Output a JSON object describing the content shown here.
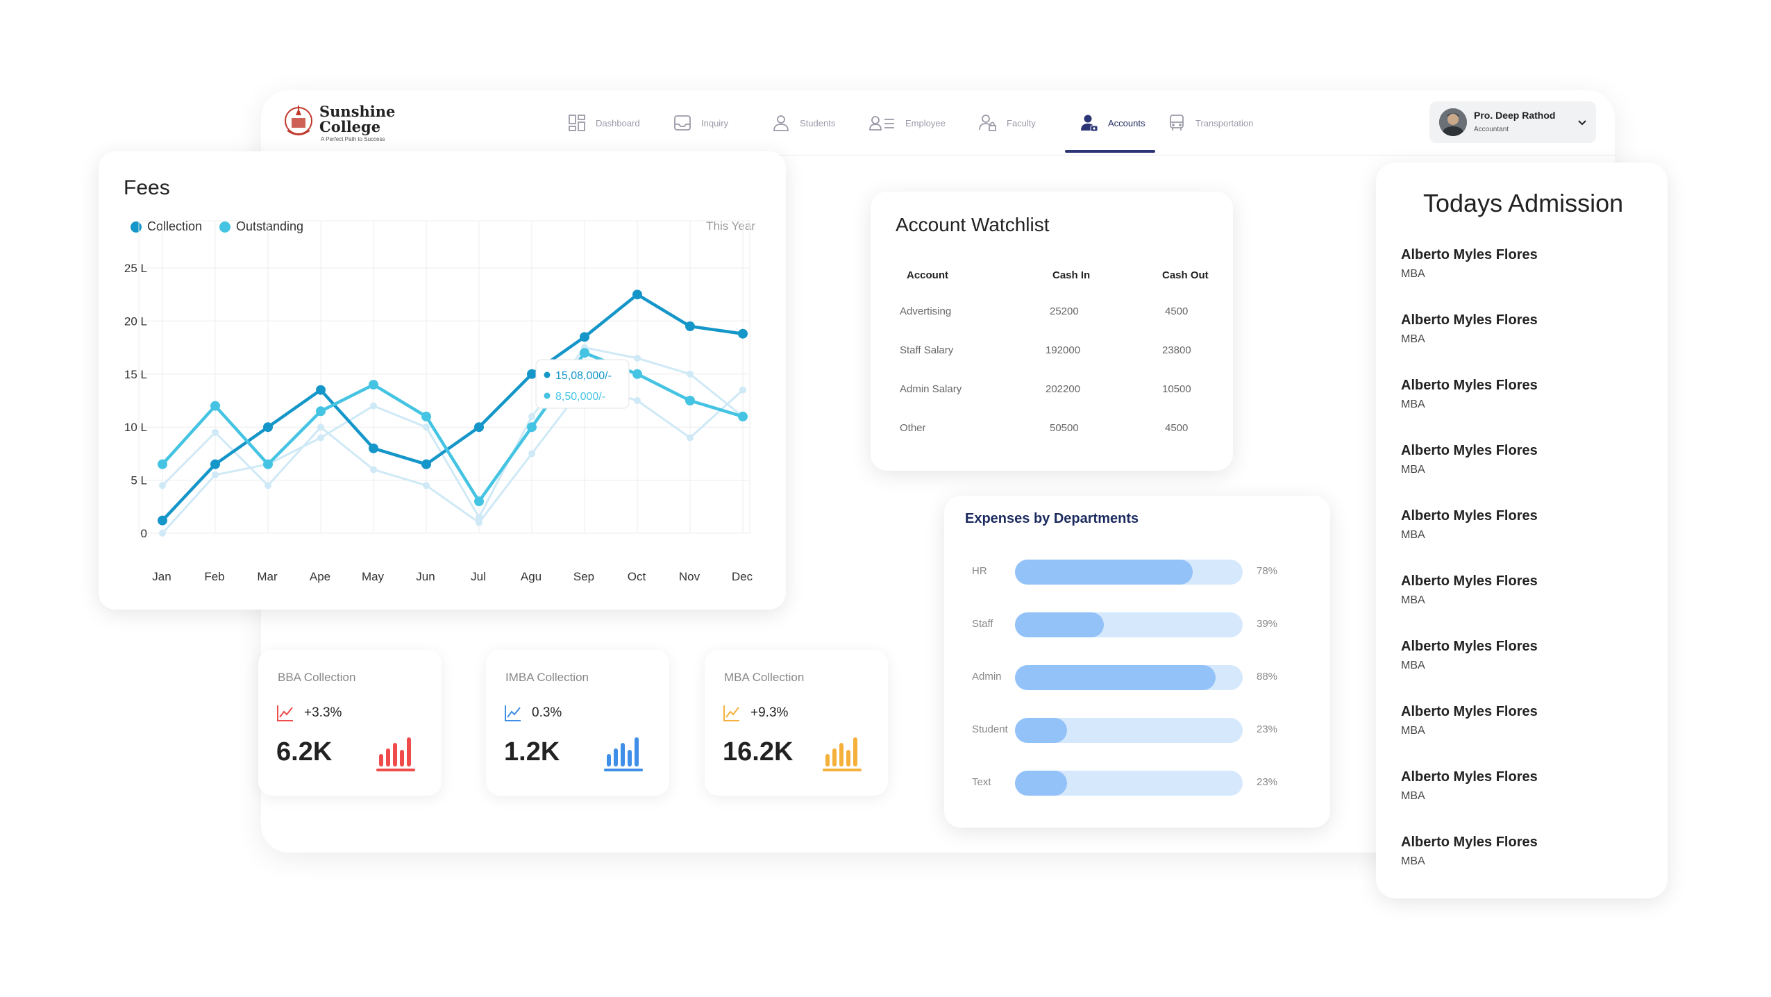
{
  "brand": {
    "line1": "Sunshine",
    "line2": "College",
    "tagline": "A Perfect Path to Success"
  },
  "nav": {
    "items": [
      {
        "label": "Dashboard",
        "icon": "dashboard-icon"
      },
      {
        "label": "Inquiry",
        "icon": "inbox-icon"
      },
      {
        "label": "Students",
        "icon": "person-icon"
      },
      {
        "label": "Employee",
        "icon": "employee-list-icon"
      },
      {
        "label": "Faculty",
        "icon": "faculty-lock-icon"
      },
      {
        "label": "Accounts",
        "icon": "accounts-icon"
      },
      {
        "label": "Transportation",
        "icon": "bus-icon"
      }
    ],
    "active": "Accounts"
  },
  "user": {
    "name": "Pro. Deep Rathod",
    "role": "Accountant"
  },
  "fees": {
    "title": "Fees",
    "period": "This Year",
    "tooltip": {
      "collection": "15,08,000/-",
      "outstanding": "8,50,000/-"
    }
  },
  "chart_data": {
    "type": "line",
    "x": [
      "Jan",
      "Feb",
      "Mar",
      "Ape",
      "May",
      "Jun",
      "Jul",
      "Agu",
      "Sep",
      "Oct",
      "Nov",
      "Dec"
    ],
    "y_ticks": [
      "0",
      "5 L",
      "10 L",
      "15 L",
      "20 L",
      "25 L"
    ],
    "ylim": [
      0,
      25
    ],
    "legend_position": "top-left",
    "series": [
      {
        "name": "Collection",
        "color": "#1596c9",
        "values": [
          1.2,
          6.5,
          10,
          13.5,
          8,
          6.5,
          10,
          15,
          18.5,
          22.5,
          19.5,
          18.8
        ]
      },
      {
        "name": "Outstanding",
        "color": "#44c4e2",
        "values": [
          6.5,
          12,
          6.5,
          11.5,
          14,
          11,
          3,
          10,
          17,
          15,
          12.5,
          11
        ]
      }
    ],
    "background_series": [
      {
        "values": [
          4.5,
          9.5,
          4.5,
          10,
          6,
          4.5,
          1,
          7.5,
          14,
          12.5,
          9,
          13.5
        ]
      },
      {
        "values": [
          0,
          5.5,
          6.5,
          9,
          12,
          10,
          1.5,
          11,
          17.5,
          16.5,
          15,
          11
        ]
      }
    ]
  },
  "watchlist": {
    "title": "Account Watchlist",
    "columns": [
      "Account",
      "Cash In",
      "Cash Out"
    ],
    "rows": [
      [
        "Advertising",
        "25200",
        "4500"
      ],
      [
        "Staff Salary",
        "192000",
        "23800"
      ],
      [
        "Admin Salary",
        "202200",
        "10500"
      ],
      [
        "Other",
        "50500",
        "4500"
      ]
    ]
  },
  "expenses": {
    "title": "Expenses by Departments",
    "rows": [
      {
        "label": "HR",
        "value": 0.78,
        "pct": "78%"
      },
      {
        "label": "Staff",
        "value": 0.39,
        "pct": "39%"
      },
      {
        "label": "Admin",
        "value": 0.88,
        "pct": "88%"
      },
      {
        "label": "Student",
        "value": 0.23,
        "pct": "23%"
      },
      {
        "label": "Text",
        "value": 0.23,
        "pct": "23%"
      }
    ]
  },
  "collections": [
    {
      "title": "BBA Collection",
      "change": "+3.3%",
      "value": "6.2K",
      "color": "#ef4b4b"
    },
    {
      "title": "IMBA Collection",
      "change": "0.3%",
      "value": "1.2K",
      "color": "#3f8fe8"
    },
    {
      "title": "MBA Collection",
      "change": "+9.3%",
      "value": "16.2K",
      "color": "#f5b03c"
    }
  ],
  "admissions": {
    "title": "Todays Admission",
    "items": [
      {
        "name": "Alberto Myles Flores",
        "course": "MBA"
      },
      {
        "name": "Alberto Myles Flores",
        "course": "MBA"
      },
      {
        "name": "Alberto Myles Flores",
        "course": "MBA"
      },
      {
        "name": "Alberto Myles Flores",
        "course": "MBA"
      },
      {
        "name": "Alberto Myles Flores",
        "course": "MBA"
      },
      {
        "name": "Alberto Myles Flores",
        "course": "MBA"
      },
      {
        "name": "Alberto Myles Flores",
        "course": "MBA"
      },
      {
        "name": "Alberto Myles Flores",
        "course": "MBA"
      },
      {
        "name": "Alberto Myles Flores",
        "course": "MBA"
      },
      {
        "name": "Alberto Myles Flores",
        "course": "MBA"
      }
    ]
  }
}
